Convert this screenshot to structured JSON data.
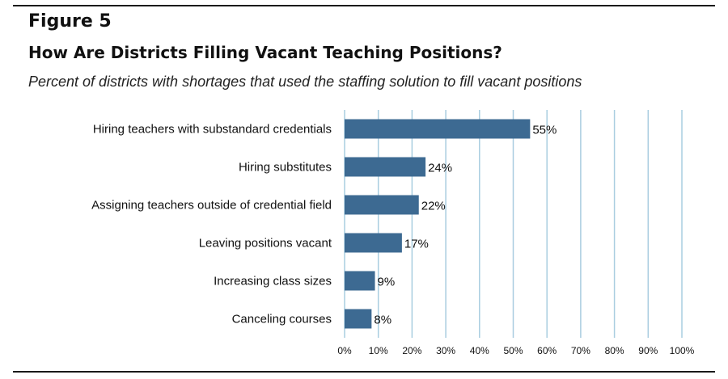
{
  "figure_label": "Figure 5",
  "chart_data": {
    "type": "bar",
    "orientation": "horizontal",
    "title": "How Are Districts Filling Vacant Teaching Positions?",
    "subtitle": "Percent of districts with shortages that used the staffing solution to fill vacant positions",
    "categories": [
      "Hiring teachers with substandard credentials",
      "Hiring substitutes",
      "Assigning teachers outside of credential field",
      "Leaving positions vacant",
      "Increasing class sizes",
      "Canceling courses"
    ],
    "values": [
      55,
      24,
      22,
      17,
      9,
      8
    ],
    "value_labels": [
      "55%",
      "24%",
      "22%",
      "17%",
      "9%",
      "8%"
    ],
    "xlim": [
      0,
      100
    ],
    "x_ticks": [
      "0%",
      "10%",
      "20%",
      "30%",
      "40%",
      "50%",
      "60%",
      "70%",
      "80%",
      "90%",
      "100%"
    ],
    "grid": "vertical",
    "bar_color": "#3d6a92",
    "grid_color": "#a9cde0"
  }
}
